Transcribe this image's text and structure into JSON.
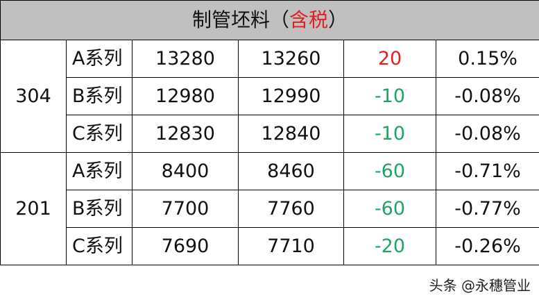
{
  "title": {
    "main": "制管坯料",
    "paren_open": "（",
    "highlight": "含税",
    "paren_close": "）"
  },
  "colors": {
    "positive": "#e02020",
    "negative": "#1fa463",
    "header_bg": "#c0c0c0"
  },
  "groups": [
    {
      "grade": "304",
      "rows": [
        {
          "series": "A系列",
          "current": "13280",
          "previous": "13260",
          "change": "20",
          "pct": "0.15%",
          "dir": "up"
        },
        {
          "series": "B系列",
          "current": "12980",
          "previous": "12990",
          "change": "-10",
          "pct": "-0.08%",
          "dir": "down"
        },
        {
          "series": "C系列",
          "current": "12830",
          "previous": "12840",
          "change": "-10",
          "pct": "-0.08%",
          "dir": "down"
        }
      ]
    },
    {
      "grade": "201",
      "rows": [
        {
          "series": "A系列",
          "current": "8400",
          "previous": "8460",
          "change": "-60",
          "pct": "-0.71%",
          "dir": "down"
        },
        {
          "series": "B系列",
          "current": "7700",
          "previous": "7760",
          "change": "-60",
          "pct": "-0.77%",
          "dir": "down"
        },
        {
          "series": "C系列",
          "current": "7690",
          "previous": "7710",
          "change": "-20",
          "pct": "-0.26%",
          "dir": "down"
        }
      ]
    }
  ],
  "watermark": "头条 @永穗管业"
}
